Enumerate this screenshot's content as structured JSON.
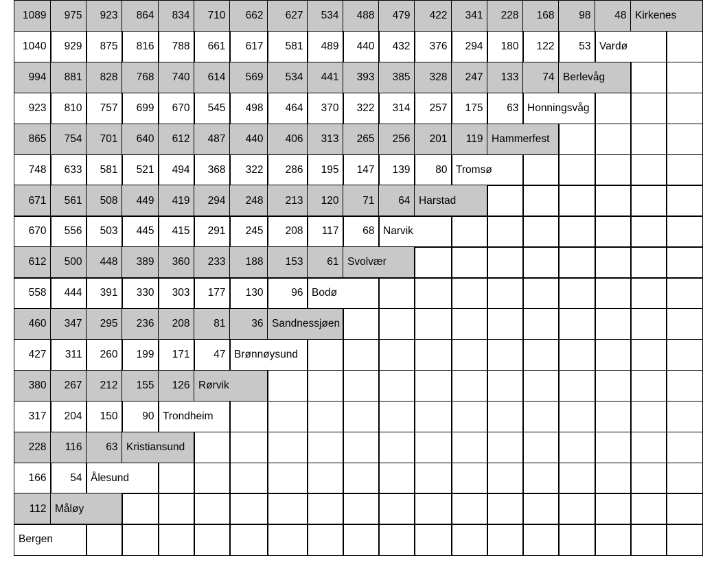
{
  "table": {
    "rows": [
      {
        "cells": [
          1089,
          975,
          923,
          864,
          834,
          710,
          662,
          627,
          534,
          488,
          479,
          422,
          341,
          228,
          168,
          98,
          48
        ],
        "place": "Kirkenes"
      },
      {
        "cells": [
          1040,
          929,
          875,
          816,
          788,
          661,
          617,
          581,
          489,
          440,
          432,
          376,
          294,
          180,
          122,
          53
        ],
        "place": "Vardø"
      },
      {
        "cells": [
          994,
          881,
          828,
          768,
          740,
          614,
          569,
          534,
          441,
          393,
          385,
          328,
          247,
          133,
          74
        ],
        "place": "Berlevåg"
      },
      {
        "cells": [
          923,
          810,
          757,
          699,
          670,
          545,
          498,
          464,
          370,
          322,
          314,
          257,
          175,
          63
        ],
        "place": "Honningsvåg"
      },
      {
        "cells": [
          865,
          754,
          701,
          640,
          612,
          487,
          440,
          406,
          313,
          265,
          256,
          201,
          119
        ],
        "place": "Hammerfest"
      },
      {
        "cells": [
          748,
          633,
          581,
          521,
          494,
          368,
          322,
          286,
          195,
          147,
          139,
          80
        ],
        "place": "Tromsø"
      },
      {
        "cells": [
          671,
          561,
          508,
          449,
          419,
          294,
          248,
          213,
          120,
          71,
          64
        ],
        "place": "Harstad"
      },
      {
        "cells": [
          670,
          556,
          503,
          445,
          415,
          291,
          245,
          208,
          117,
          68
        ],
        "place": "Narvik"
      },
      {
        "cells": [
          612,
          500,
          448,
          389,
          360,
          233,
          188,
          153,
          61
        ],
        "place": "Svolvær"
      },
      {
        "cells": [
          558,
          444,
          391,
          330,
          303,
          177,
          130,
          96
        ],
        "place": "Bodø"
      },
      {
        "cells": [
          460,
          347,
          295,
          236,
          208,
          81,
          36
        ],
        "place": "Sandnessjøen"
      },
      {
        "cells": [
          427,
          311,
          260,
          199,
          171,
          47
        ],
        "place": "Brønnøysund"
      },
      {
        "cells": [
          380,
          267,
          212,
          155,
          126
        ],
        "place": "Rørvik"
      },
      {
        "cells": [
          317,
          204,
          150,
          90
        ],
        "place": "Trondheim"
      },
      {
        "cells": [
          228,
          116,
          63
        ],
        "place": "Kristiansund"
      },
      {
        "cells": [
          166,
          54
        ],
        "place": "Ålesund"
      },
      {
        "cells": [
          112
        ],
        "place": "Måløy"
      },
      {
        "cells": [],
        "place": "Bergen"
      }
    ]
  }
}
